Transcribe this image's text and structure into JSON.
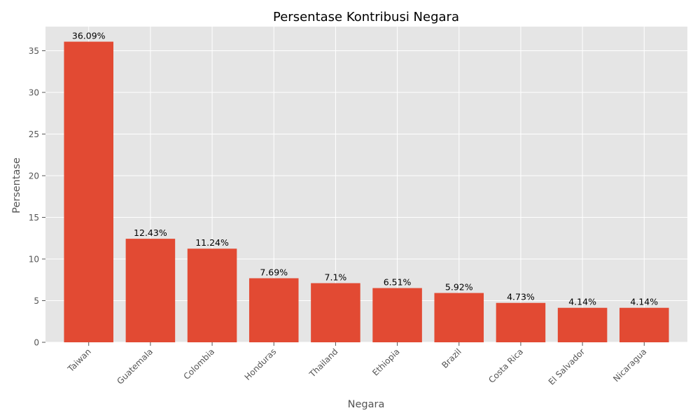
{
  "chart_data": {
    "type": "bar",
    "title": "Persentase Kontribusi Negara",
    "xlabel": "Negara",
    "ylabel": "Persentase",
    "categories": [
      "Taiwan",
      "Guatemala",
      "Colombia",
      "Honduras",
      "Thailand",
      "Ethiopia",
      "Brazil",
      "Costa Rica",
      "El Salvador",
      "Nicaragua"
    ],
    "values": [
      36.09,
      12.43,
      11.24,
      7.69,
      7.1,
      6.51,
      5.92,
      4.73,
      4.14,
      4.14
    ],
    "value_labels": [
      "36.09%",
      "12.43%",
      "11.24%",
      "7.69%",
      "7.1%",
      "6.51%",
      "5.92%",
      "4.73%",
      "4.14%",
      "4.14%"
    ],
    "ylim": [
      0,
      37.9
    ],
    "yticks": [
      0,
      5,
      10,
      15,
      20,
      25,
      30,
      35
    ],
    "grid": true,
    "colors": {
      "bar": "#E24A33",
      "plot_background": "#E5E5E5",
      "grid": "#FFFFFF",
      "tick_mark": "#555555"
    }
  }
}
